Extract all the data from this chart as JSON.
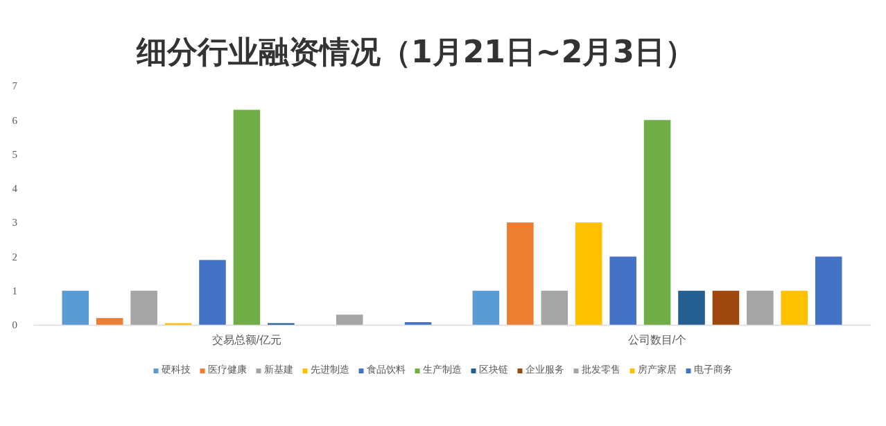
{
  "chart_data": {
    "type": "bar",
    "title": "细分行业融资情况（1月21日~2月3日）",
    "categories": [
      "交易总额/亿元",
      "公司数目/个"
    ],
    "series": [
      {
        "name": "硬科技",
        "color": "#5b9bd5",
        "values": [
          1,
          1
        ]
      },
      {
        "name": "医疗健康",
        "color": "#ed7d31",
        "values": [
          0.2,
          3
        ]
      },
      {
        "name": "新基建",
        "color": "#a5a5a5",
        "values": [
          1,
          1
        ]
      },
      {
        "name": "先进制造",
        "color": "#ffc000",
        "values": [
          0.05,
          3
        ]
      },
      {
        "name": "食品饮料",
        "color": "#4472c4",
        "values": [
          1.9,
          2
        ]
      },
      {
        "name": "生产制造",
        "color": "#70ad47",
        "values": [
          6.3,
          6
        ]
      },
      {
        "name": "区块链",
        "color": "#255e91",
        "values": [
          0.05,
          1
        ]
      },
      {
        "name": "企业服务",
        "color": "#9e480e",
        "values": [
          0,
          1
        ]
      },
      {
        "name": "批发零售",
        "color": "#a5a5a5",
        "values": [
          0.3,
          1
        ]
      },
      {
        "name": "房产家居",
        "color": "#ffc000",
        "values": [
          0,
          1
        ]
      },
      {
        "name": "电子商务",
        "color": "#4472c4",
        "values": [
          0.08,
          2
        ]
      }
    ],
    "ylim": [
      0,
      7
    ],
    "yticks": [
      0,
      1,
      2,
      3,
      4,
      5,
      6,
      7
    ],
    "grid": false,
    "legend": "bottom"
  }
}
